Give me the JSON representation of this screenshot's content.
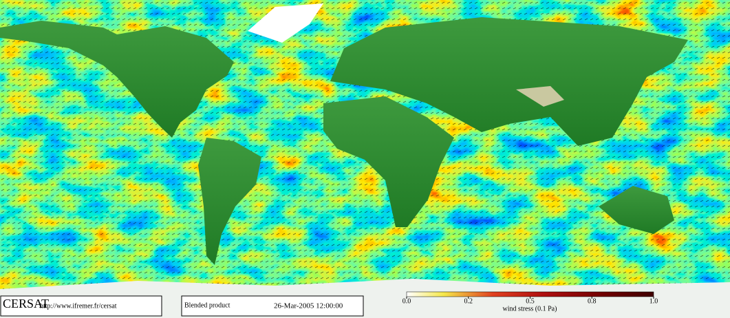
{
  "footer": {
    "logo": "CERSAT",
    "url": "http://www.ifremer.fr/cersat",
    "product": "Blended product",
    "date": "26-Mar-2005 12:00:00"
  },
  "colorbar": {
    "ticks": [
      {
        "value": 0,
        "label": "0.0"
      },
      0.2,
      0.5,
      0.8,
      {
        "value": 1,
        "label": "1.0"
      }
    ],
    "label": "wind stress (0.1 Pa)"
  }
}
